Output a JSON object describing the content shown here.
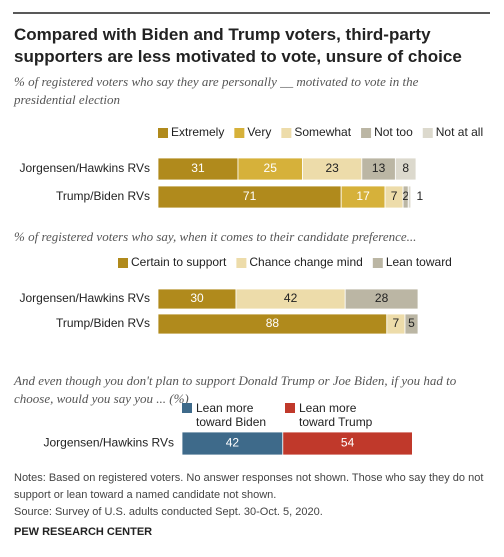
{
  "title": "Compared with Biden and Trump voters, third-party supporters are less motivated to vote, unsure of choice",
  "notes": "Notes: Based on registered voters. No answer responses not shown. Those who say they do not support or lean toward a named candidate not shown.",
  "source": "Source: Survey of U.S. adults conducted Sept. 30-Oct. 5, 2020.",
  "brand": "PEW RESEARCH CENTER",
  "chart_data": [
    {
      "type": "stacked-bar",
      "subtitle": "% of registered voters who say they are personally __ motivated to vote in the presidential election",
      "categories": [
        "Jorgensen/Hawkins RVs",
        "Trump/Biden RVs"
      ],
      "series": [
        {
          "name": "Extremely",
          "color": "#b08a1c",
          "values": [
            31,
            71
          ]
        },
        {
          "name": "Very",
          "color": "#d6b13a",
          "values": [
            25,
            17
          ]
        },
        {
          "name": "Somewhat",
          "color": "#eddcaa",
          "values": [
            23,
            7
          ]
        },
        {
          "name": "Not too",
          "color": "#bbb6a4",
          "values": [
            13,
            2
          ]
        },
        {
          "name": "Not at all",
          "color": "#dcd9cd",
          "values": [
            8,
            1
          ]
        }
      ]
    },
    {
      "type": "stacked-bar",
      "subtitle": "% of registered voters who say, when it comes to their candidate preference...",
      "categories": [
        "Jorgensen/Hawkins RVs",
        "Trump/Biden RVs"
      ],
      "series": [
        {
          "name": "Certain to support",
          "color": "#b08a1c",
          "values": [
            30,
            88
          ]
        },
        {
          "name": "Chance change mind",
          "color": "#eddcaa",
          "values": [
            42,
            7
          ]
        },
        {
          "name": "Lean toward",
          "color": "#bbb6a4",
          "values": [
            28,
            5
          ]
        }
      ]
    },
    {
      "type": "stacked-bar",
      "subtitle": "And even though you don't plan to support Donald Trump or Joe Biden, if you had to choose, would you say you ... (%)",
      "categories": [
        "Jorgensen/Hawkins RVs"
      ],
      "series": [
        {
          "name": "Lean more toward Biden",
          "color": "#3e6a8a",
          "values": [
            42
          ]
        },
        {
          "name": "Lean more toward Trump",
          "color": "#c0392b",
          "values": [
            54
          ]
        }
      ]
    }
  ]
}
